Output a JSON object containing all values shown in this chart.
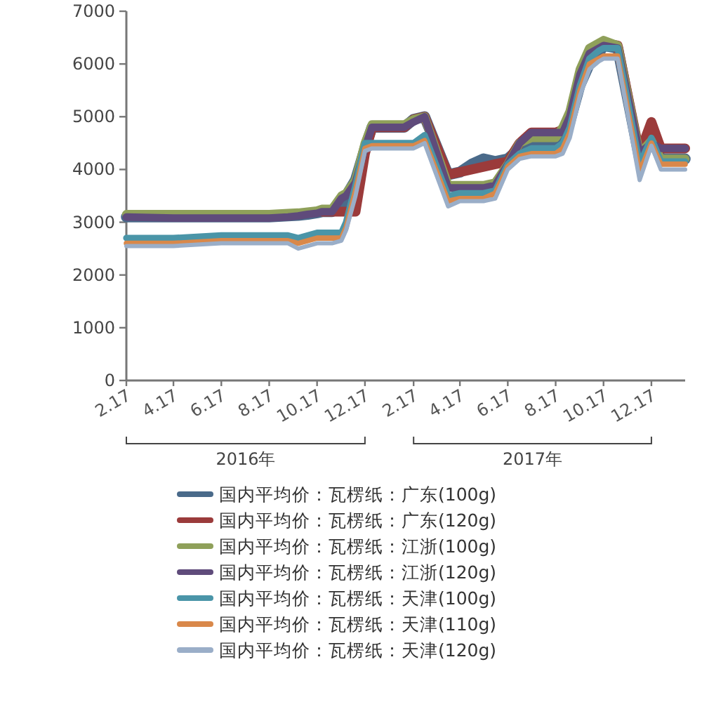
{
  "chart_data": {
    "type": "line",
    "x": [
      "2016-02-17",
      "2016-04-17",
      "2016-06-17",
      "2016-08-17",
      "2016-09-10",
      "2016-09-23",
      "2016-10-05",
      "2016-10-17",
      "2016-10-23",
      "2016-11-05",
      "2016-11-17",
      "2016-11-23",
      "2016-12-05",
      "2016-12-17",
      "2016-12-26",
      "2017-02-05",
      "2017-02-17",
      "2017-03-03",
      "2017-04-02",
      "2017-04-17",
      "2017-05-02",
      "2017-05-17",
      "2017-06-01",
      "2017-06-17",
      "2017-07-02",
      "2017-07-17",
      "2017-08-17",
      "2017-08-26",
      "2017-09-04",
      "2017-09-17",
      "2017-09-29",
      "2017-10-11",
      "2017-10-17",
      "2017-11-04",
      "2017-12-02",
      "2017-12-17",
      "2017-12-29",
      "2018-01-29"
    ],
    "xlim": [
      "2016-02-17",
      "2018-01-29"
    ],
    "xticks": [
      {
        "value": "2016-02-17",
        "label": "2.17"
      },
      {
        "value": "2016-04-17",
        "label": "4.17"
      },
      {
        "value": "2016-06-17",
        "label": "6.17"
      },
      {
        "value": "2016-08-17",
        "label": "8.17"
      },
      {
        "value": "2016-10-17",
        "label": "10.17"
      },
      {
        "value": "2016-12-17",
        "label": "12.17"
      },
      {
        "value": "2017-02-17",
        "label": "2.17"
      },
      {
        "value": "2017-04-17",
        "label": "4.17"
      },
      {
        "value": "2017-06-17",
        "label": "6.17"
      },
      {
        "value": "2017-08-17",
        "label": "8.17"
      },
      {
        "value": "2017-10-17",
        "label": "10.17"
      },
      {
        "value": "2017-12-17",
        "label": "12.17"
      }
    ],
    "ylim": [
      0,
      7000
    ],
    "yticks": [
      0,
      1000,
      2000,
      3000,
      4000,
      5000,
      6000,
      7000
    ],
    "grid": false,
    "legend": "bottom",
    "line_style": "solid",
    "annotations": [
      "2016年",
      "2017年"
    ],
    "series": [
      {
        "name": "国内平均价：瓦楞纸：广东(100g)",
        "color": "#4a6a8a",
        "values": [
          3100,
          3100,
          3100,
          3100,
          3120,
          3130,
          3150,
          3180,
          3200,
          3200,
          3300,
          3500,
          3800,
          4400,
          4800,
          4800,
          4950,
          5000,
          3900,
          3950,
          4100,
          4200,
          4150,
          4200,
          4400,
          4450,
          4450,
          4700,
          4900,
          5600,
          6000,
          6200,
          6350,
          6300,
          4200,
          4600,
          4200,
          4200
        ]
      },
      {
        "name": "国内平均价：瓦楞纸：广东(120g)",
        "color": "#9b3b3b",
        "values": [
          null,
          null,
          null,
          null,
          null,
          null,
          null,
          null,
          3200,
          3200,
          3200,
          3200,
          3200,
          4300,
          4800,
          4800,
          4950,
          5000,
          3900,
          3950,
          4000,
          4050,
          4100,
          4150,
          4500,
          4700,
          4700,
          4750,
          5000,
          5700,
          6100,
          6300,
          6400,
          6350,
          4300,
          4900,
          4400,
          4400
        ]
      },
      {
        "name": "国内平均价：瓦楞纸：江浙(100g)",
        "color": "#8fa05a",
        "values": [
          3150,
          3150,
          3150,
          3150,
          3170,
          3180,
          3200,
          3220,
          3250,
          3250,
          3500,
          3550,
          3800,
          4500,
          4850,
          4850,
          4950,
          5000,
          3700,
          3700,
          3700,
          3700,
          3750,
          4100,
          4500,
          4600,
          4600,
          4800,
          5100,
          5900,
          6300,
          6400,
          6450,
          6350,
          4300,
          4550,
          4200,
          4200
        ]
      },
      {
        "name": "国内平均价：瓦楞纸：江浙(120g)",
        "color": "#5f4b7b",
        "values": [
          3100,
          3080,
          3080,
          3080,
          3100,
          3120,
          3150,
          3170,
          3200,
          3200,
          3450,
          3500,
          3750,
          4400,
          4800,
          4800,
          4900,
          5000,
          3650,
          3650,
          3650,
          3650,
          3700,
          4100,
          4500,
          4700,
          4700,
          4700,
          5000,
          5800,
          6200,
          6300,
          6350,
          6300,
          4300,
          4500,
          4400,
          4400
        ]
      },
      {
        "name": "国内平均价：瓦楞纸：天津(100g)",
        "color": "#4a95a8",
        "values": [
          2700,
          2700,
          2750,
          2750,
          2750,
          2700,
          2750,
          2800,
          2800,
          2800,
          2800,
          3000,
          3700,
          4500,
          4500,
          4500,
          4500,
          4650,
          3500,
          3550,
          3550,
          3550,
          3600,
          4100,
          4300,
          4400,
          4400,
          4500,
          4800,
          5600,
          6100,
          6250,
          6300,
          6300,
          4100,
          4600,
          4150,
          4150
        ]
      },
      {
        "name": "国内平均价：瓦楞纸：天津(110g)",
        "color": "#d9884a",
        "values": [
          2600,
          2600,
          2650,
          2650,
          2650,
          2600,
          2650,
          2700,
          2700,
          2700,
          2700,
          2900,
          3600,
          4400,
          4450,
          4450,
          4450,
          4550,
          3400,
          3450,
          3450,
          3450,
          3550,
          4050,
          4250,
          4300,
          4300,
          4400,
          4700,
          5500,
          6000,
          6100,
          6150,
          6150,
          3950,
          4500,
          4100,
          4100
        ]
      },
      {
        "name": "国内平均价：瓦楞纸：天津(120g)",
        "color": "#9aaec8",
        "values": [
          2550,
          2550,
          2600,
          2600,
          2600,
          2500,
          2550,
          2600,
          2600,
          2600,
          2650,
          2850,
          3500,
          4350,
          4400,
          4400,
          4400,
          4500,
          3300,
          3400,
          3400,
          3400,
          3450,
          4000,
          4200,
          4250,
          4250,
          4300,
          4600,
          5400,
          5900,
          6050,
          6100,
          6100,
          3800,
          4450,
          4000,
          4000
        ]
      }
    ]
  }
}
